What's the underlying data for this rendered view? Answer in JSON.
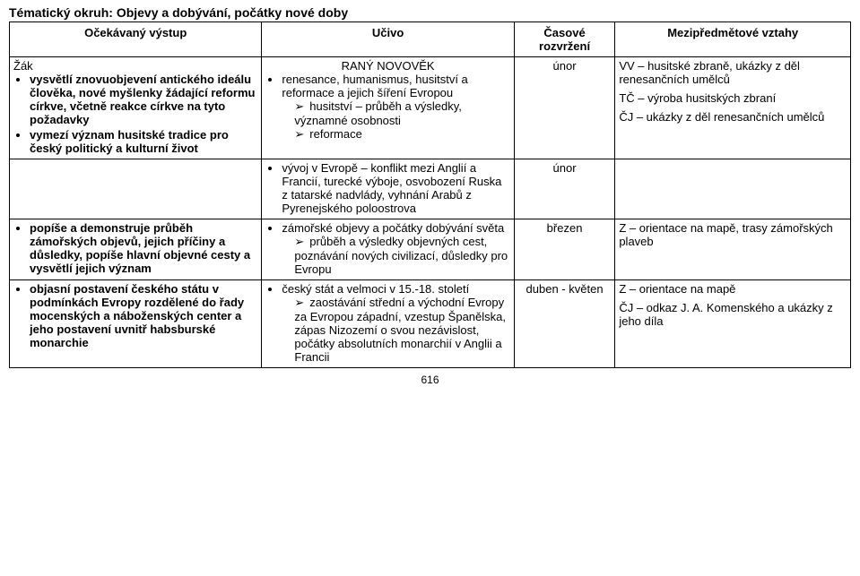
{
  "heading": "Tématický okruh: Objevy a dobývání, počátky nové doby",
  "header": {
    "col1": "Očekávaný výstup",
    "col2": "Učivo",
    "col3": "Časové rozvržení",
    "col4": "Mezipředmětové vztahy"
  },
  "row1": {
    "outcome_lead": "Žák",
    "outcome_items": [
      "vysvětlí znovuobjevení antického ideálu člověka, nové myšlenky žádající reformu církve, včetně reakce církve na tyto požadavky",
      "vymezí význam husitské tradice pro český politický a kulturní život"
    ],
    "ucivo_title": "RANÝ NOVOVĚK",
    "ucivo_items": [
      "renesance, humanismus, husitství a reformace a jejich šíření Evropou"
    ],
    "ucivo_sub": [
      "husitství – průběh a výsledky, významné osobnosti",
      "reformace"
    ],
    "time": "únor",
    "rel": [
      "VV – husitské zbraně, ukázky z děl renesančních umělců",
      "TČ – výroba husitských zbraní",
      "ČJ – ukázky z děl renesančních umělců"
    ]
  },
  "row2": {
    "ucivo_items": [
      "vývoj v Evropě – konflikt mezi Anglií a Francií, turecké výboje, osvobození Ruska z tatarské nadvlády, vyhnání Arabů z Pyrenejského poloostrova"
    ],
    "time": "únor"
  },
  "row3": {
    "outcome_items": [
      "popíše a demonstruje průběh zámořských objevů, jejich příčiny a důsledky, popíše hlavní objevné cesty a vysvětlí jejich význam"
    ],
    "ucivo_items": [
      "zámořské objevy a počátky dobývání světa"
    ],
    "ucivo_sub": [
      "průběh a výsledky objevných cest, poznávání nových civilizací, důsledky pro Evropu"
    ],
    "time": "březen",
    "rel": [
      "Z – orientace na mapě, trasy zámořských plaveb"
    ]
  },
  "row4": {
    "outcome_items": [
      "objasní postavení českého státu v podmínkách Evropy rozdělené do řady mocenských a náboženských center a jeho postavení uvnitř habsburské monarchie"
    ],
    "ucivo_items": [
      "český stát a velmoci v 15.-18. století"
    ],
    "ucivo_sub": [
      "zaostávání střední a východní Evropy za Evropou západní, vzestup Španělska, zápas Nizozemí o svou nezávislost, počátky absolutních monarchií v Anglii a Francii"
    ],
    "time": "duben - květen",
    "rel": [
      "Z – orientace na mapě",
      "ČJ – odkaz J. A. Komenského a ukázky z jeho díla"
    ]
  },
  "page_number": "616"
}
